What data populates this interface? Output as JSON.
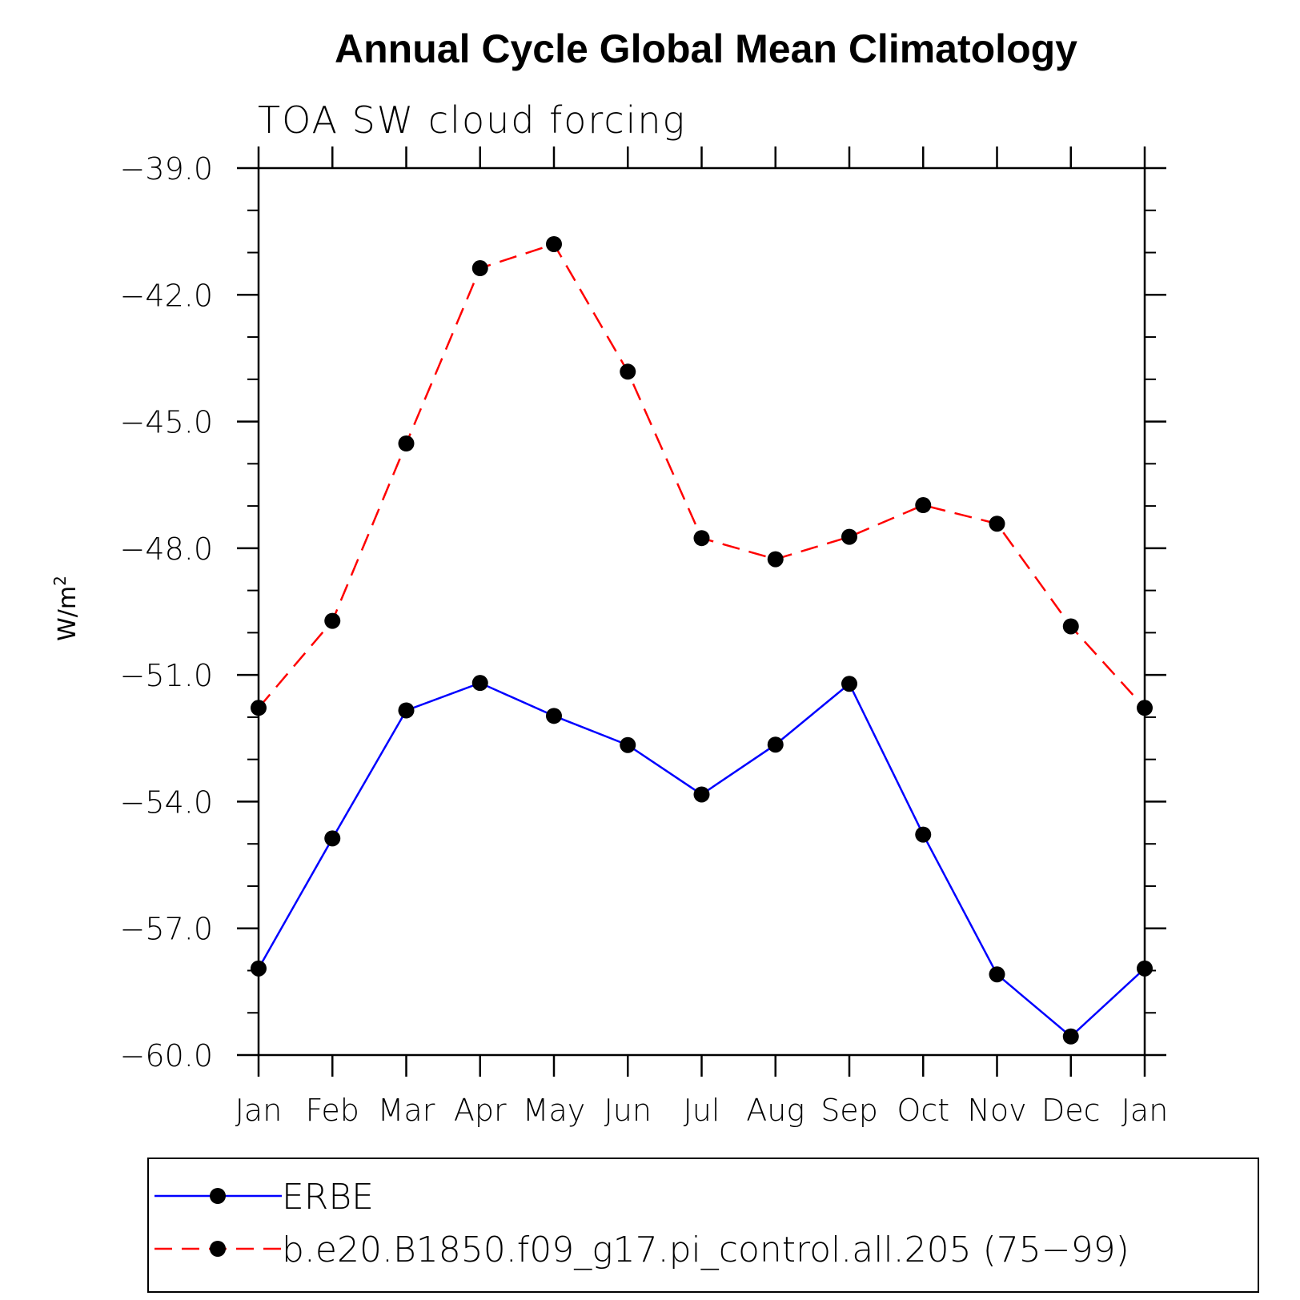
{
  "chart_data": {
    "type": "line",
    "title": "Annual Cycle Global Mean Climatology",
    "subtitle": "TOA SW cloud forcing",
    "ylabel": "W/m",
    "ylabel_superscript": "2",
    "categories": [
      "Jan",
      "Feb",
      "Mar",
      "Apr",
      "May",
      "Jun",
      "Jul",
      "Aug",
      "Sep",
      "Oct",
      "Nov",
      "Dec",
      "Jan"
    ],
    "ylim": [
      -60.0,
      -39.0
    ],
    "yticks": [
      "-39.0",
      "-42.0",
      "-45.0",
      "-48.0",
      "-51.0",
      "-54.0",
      "-57.0",
      "-60.0"
    ],
    "ytick_values": [
      -39,
      -42,
      -45,
      -48,
      -51,
      -54,
      -57,
      -60
    ],
    "grid": false,
    "legend_position": "bottom",
    "series": [
      {
        "name": "ERBE",
        "color": "#0000ff",
        "style": "solid",
        "marker": "dot",
        "values": [
          -57.95,
          -54.87,
          -51.84,
          -51.19,
          -51.97,
          -52.66,
          -53.83,
          -52.65,
          -51.21,
          -54.78,
          -58.09,
          -59.56,
          -57.95
        ]
      },
      {
        "name": "b.e20.B1850.f09_g17.pi_control.all.205 (75-99)",
        "color": "#ff0000",
        "style": "dashed",
        "marker": "dot",
        "values": [
          -51.78,
          -49.72,
          -45.52,
          -41.37,
          -40.8,
          -43.82,
          -47.76,
          -48.26,
          -47.73,
          -46.98,
          -47.42,
          -49.85,
          -51.78
        ]
      }
    ]
  }
}
